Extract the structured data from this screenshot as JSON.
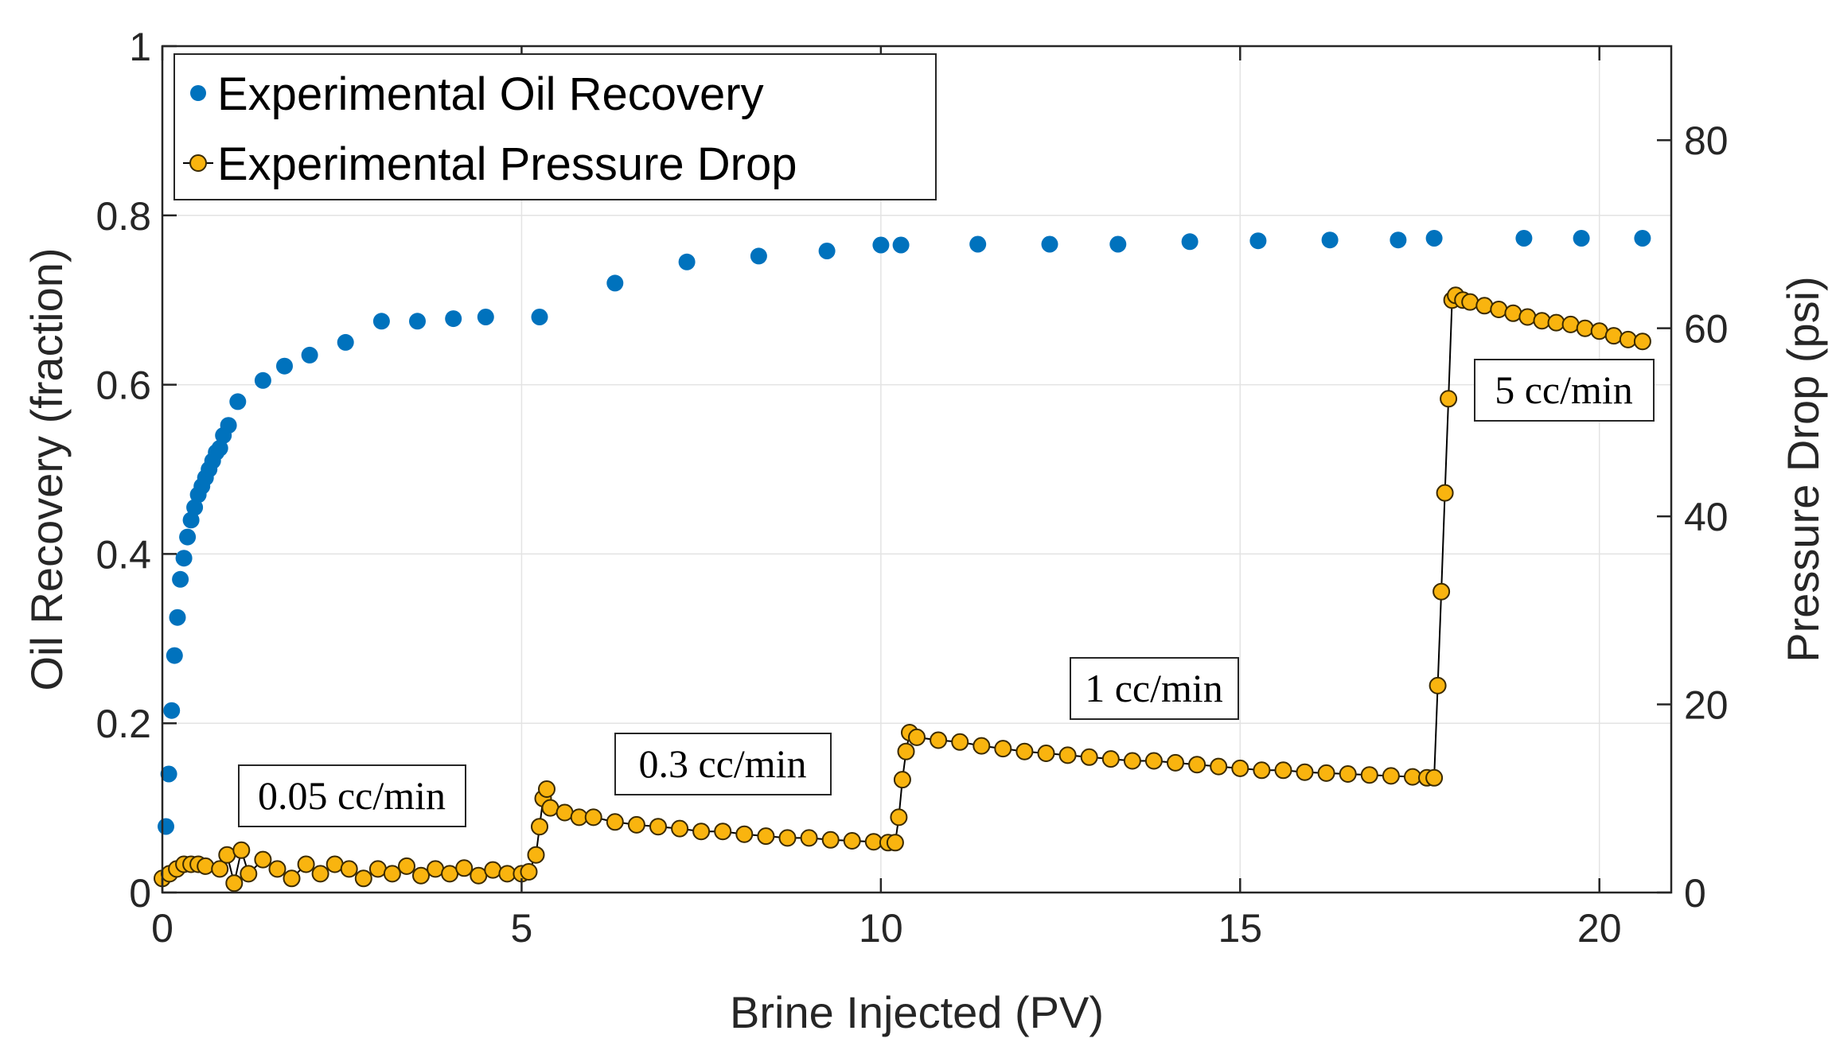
{
  "chart_data": {
    "type": "scatter",
    "xlabel": "Brine Injected (PV)",
    "ylabel_left": "Oil Recovery (fraction)",
    "ylabel_right": "Pressure Drop (psi)",
    "xlim": [
      0,
      21
    ],
    "ylim_left": [
      0,
      1
    ],
    "ylim_right": [
      0,
      90
    ],
    "x_ticks": [
      "0",
      "5",
      "10",
      "15",
      "20"
    ],
    "y_left_ticks": [
      "0",
      "0.2",
      "0.4",
      "0.6",
      "0.8",
      "1"
    ],
    "y_right_ticks": [
      "0",
      "20",
      "40",
      "60",
      "80"
    ],
    "grid": true,
    "legend_position": "top-left",
    "colors": {
      "recovery": "#0072BD",
      "pressure_fill": "#F9B40F",
      "pressure_edge": "#3a2a00",
      "pressure_line": "#000000",
      "axis": "#262626",
      "grid": "#e3e3e3"
    },
    "series": [
      {
        "name": "Experimental Oil Recovery",
        "axis": "left",
        "x": [
          0.05,
          0.09,
          0.13,
          0.17,
          0.21,
          0.25,
          0.3,
          0.35,
          0.4,
          0.45,
          0.5,
          0.55,
          0.6,
          0.65,
          0.7,
          0.75,
          0.8,
          0.85,
          0.92,
          1.05,
          1.4,
          1.7,
          2.05,
          2.55,
          3.05,
          3.55,
          4.05,
          4.5,
          5.25,
          6.3,
          7.3,
          8.3,
          9.25,
          10.0,
          10.28,
          11.35,
          12.35,
          13.3,
          14.3,
          15.25,
          16.25,
          17.2,
          17.7,
          18.95,
          19.75,
          20.6
        ],
        "y": [
          0.078,
          0.14,
          0.215,
          0.28,
          0.325,
          0.37,
          0.395,
          0.42,
          0.44,
          0.455,
          0.47,
          0.48,
          0.49,
          0.5,
          0.51,
          0.52,
          0.525,
          0.54,
          0.552,
          0.58,
          0.605,
          0.622,
          0.635,
          0.65,
          0.675,
          0.675,
          0.678,
          0.68,
          0.68,
          0.72,
          0.745,
          0.752,
          0.758,
          0.765,
          0.765,
          0.766,
          0.766,
          0.766,
          0.769,
          0.77,
          0.771,
          0.771,
          0.773,
          0.773,
          0.773,
          0.773
        ]
      },
      {
        "name": "Experimental Pressure Drop",
        "axis": "right",
        "segments": [
          {
            "label": "0.05 cc/min",
            "x": [
              0.0,
              0.1,
              0.2,
              0.3,
              0.4,
              0.5,
              0.6,
              0.8,
              0.9,
              1.0,
              1.1,
              1.2,
              1.4,
              1.6,
              1.8,
              2.0,
              2.2,
              2.4,
              2.6,
              2.8,
              3.0,
              3.2,
              3.4,
              3.6,
              3.8,
              4.0,
              4.2,
              4.4,
              4.6,
              4.8,
              5.0,
              5.1
            ],
            "y": [
              1.5,
              2.0,
              2.5,
              3.0,
              3.0,
              3.0,
              2.8,
              2.5,
              4.0,
              1.0,
              4.5,
              2.0,
              3.5,
              2.5,
              1.5,
              3.0,
              2.0,
              3.0,
              2.5,
              1.5,
              2.5,
              2.0,
              2.8,
              1.8,
              2.5,
              2.0,
              2.6,
              1.8,
              2.4,
              2.0,
              2.0,
              2.2
            ]
          },
          {
            "label": "0.3 cc/min",
            "x": [
              5.2,
              5.25,
              5.3,
              5.35,
              5.4,
              5.6,
              5.8,
              6.0,
              6.3,
              6.6,
              6.9,
              7.2,
              7.5,
              7.8,
              8.1,
              8.4,
              8.7,
              9.0,
              9.3,
              9.6,
              9.9,
              10.1,
              10.2
            ],
            "y": [
              4.0,
              7.0,
              10.0,
              11.0,
              9.0,
              8.5,
              8.0,
              8.0,
              7.5,
              7.2,
              7.0,
              6.8,
              6.5,
              6.5,
              6.2,
              6.0,
              5.8,
              5.8,
              5.6,
              5.5,
              5.4,
              5.3,
              5.3
            ]
          },
          {
            "label": "1 cc/min",
            "x": [
              10.25,
              10.3,
              10.35,
              10.4,
              10.5,
              10.8,
              11.1,
              11.4,
              11.7,
              12.0,
              12.3,
              12.6,
              12.9,
              13.2,
              13.5,
              13.8,
              14.1,
              14.4,
              14.7,
              15.0,
              15.3,
              15.6,
              15.9,
              16.2,
              16.5,
              16.8,
              17.1,
              17.4,
              17.6,
              17.7
            ],
            "y": [
              8.0,
              12.0,
              15.0,
              17.0,
              16.5,
              16.2,
              16.0,
              15.6,
              15.3,
              15.0,
              14.8,
              14.6,
              14.4,
              14.2,
              14.0,
              14.0,
              13.8,
              13.6,
              13.4,
              13.2,
              13.0,
              13.0,
              12.8,
              12.7,
              12.6,
              12.5,
              12.4,
              12.3,
              12.2,
              12.2
            ]
          },
          {
            "label": "5 cc/min",
            "x": [
              17.75,
              17.8,
              17.85,
              17.9,
              17.95,
              18.0,
              18.1,
              18.2,
              18.4,
              18.6,
              18.8,
              19.0,
              19.2,
              19.4,
              19.6,
              19.8,
              20.0,
              20.2,
              20.4,
              20.6
            ],
            "y": [
              22.0,
              32.0,
              42.5,
              52.5,
              63.0,
              63.5,
              63.0,
              62.8,
              62.4,
              62.0,
              61.6,
              61.2,
              60.8,
              60.6,
              60.4,
              60.0,
              59.7,
              59.2,
              58.8,
              58.6
            ]
          }
        ]
      }
    ],
    "annotations": [
      "0.05 cc/min",
      "0.3 cc/min",
      "1 cc/min",
      "5 cc/min"
    ]
  }
}
